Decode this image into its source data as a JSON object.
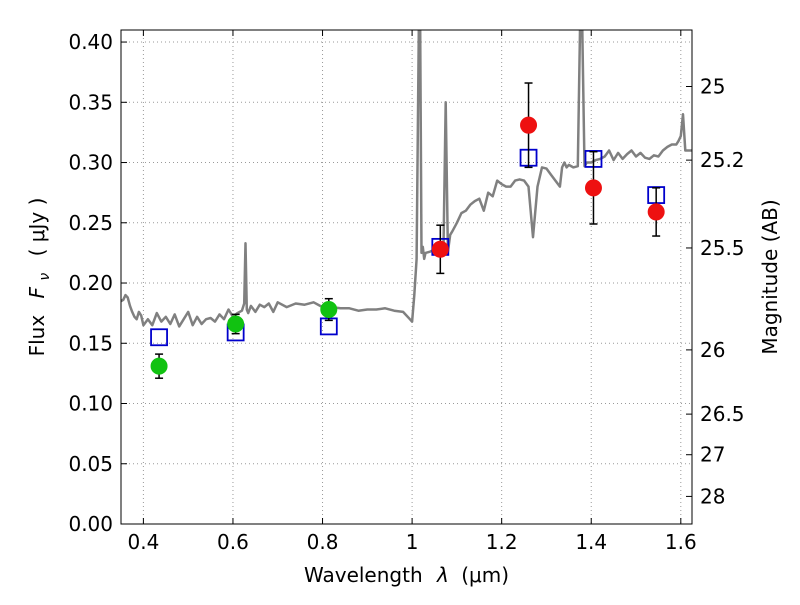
{
  "chart_data": {
    "type": "scatter",
    "title": "",
    "xlabel": {
      "prefix": "Wavelength",
      "symbol": "λ",
      "units": "(μm)"
    },
    "ylabel": {
      "prefix": "Flux",
      "symbol": "F",
      "subscript": "ν",
      "units": "( μJy )"
    },
    "y2label": "Magnitude (AB)",
    "xlim": [
      0.35,
      1.625
    ],
    "ylim": [
      0.0,
      0.41
    ],
    "grid": true,
    "x_ticks": [
      0.4,
      0.6,
      0.8,
      1.0,
      1.2,
      1.4,
      1.6
    ],
    "x_tick_labels": [
      "0.4",
      "0.6",
      "0.8",
      "1",
      "1.2",
      "1.4",
      "1.6"
    ],
    "y_ticks": [
      0.0,
      0.05,
      0.1,
      0.15,
      0.2,
      0.25,
      0.3,
      0.35,
      0.4
    ],
    "y_tick_labels": [
      "0.00",
      "0.05",
      "0.10",
      "0.15",
      "0.20",
      "0.25",
      "0.30",
      "0.35",
      "0.40"
    ],
    "y2_ticks": [
      {
        "label": "25",
        "flux": 0.3631
      },
      {
        "label": "25.2",
        "flux": 0.302
      },
      {
        "label": "25.5",
        "flux": 0.2291
      },
      {
        "label": "26",
        "flux": 0.1445
      },
      {
        "label": "26.5",
        "flux": 0.0912
      },
      {
        "label": "27",
        "flux": 0.0575
      },
      {
        "label": "28",
        "flux": 0.0229
      }
    ],
    "colors": {
      "model": "#808080",
      "optical": "#11c211",
      "nir": "#ee1111",
      "square": "#0000cc",
      "errorbar": "#000000",
      "grid": "#9a9a9a"
    },
    "model_spectrum": {
      "x": [
        0.35,
        0.355,
        0.36,
        0.365,
        0.37,
        0.375,
        0.38,
        0.385,
        0.39,
        0.395,
        0.4,
        0.41,
        0.42,
        0.43,
        0.44,
        0.45,
        0.46,
        0.47,
        0.48,
        0.49,
        0.5,
        0.51,
        0.52,
        0.53,
        0.54,
        0.55,
        0.56,
        0.57,
        0.58,
        0.59,
        0.6,
        0.61,
        0.62,
        0.625,
        0.628,
        0.631,
        0.634,
        0.64,
        0.65,
        0.66,
        0.67,
        0.68,
        0.69,
        0.7,
        0.72,
        0.74,
        0.76,
        0.78,
        0.8,
        0.82,
        0.84,
        0.86,
        0.88,
        0.9,
        0.92,
        0.94,
        0.96,
        0.98,
        0.995,
        1.0,
        1.005,
        1.01,
        1.015,
        1.018,
        1.021,
        1.024,
        1.027,
        1.03,
        1.04,
        1.05,
        1.06,
        1.07,
        1.075,
        1.08,
        1.085,
        1.09,
        1.1,
        1.11,
        1.12,
        1.13,
        1.14,
        1.15,
        1.16,
        1.17,
        1.18,
        1.19,
        1.2,
        1.21,
        1.22,
        1.23,
        1.24,
        1.25,
        1.26,
        1.27,
        1.28,
        1.29,
        1.3,
        1.31,
        1.32,
        1.33,
        1.335,
        1.34,
        1.345,
        1.35,
        1.36,
        1.37,
        1.375,
        1.38,
        1.385,
        1.39,
        1.4,
        1.41,
        1.42,
        1.43,
        1.44,
        1.45,
        1.46,
        1.47,
        1.48,
        1.49,
        1.5,
        1.51,
        1.52,
        1.53,
        1.54,
        1.55,
        1.56,
        1.57,
        1.58,
        1.59,
        1.595,
        1.6,
        1.605,
        1.61,
        1.615,
        1.625
      ],
      "y": [
        0.185,
        0.186,
        0.19,
        0.188,
        0.181,
        0.176,
        0.172,
        0.17,
        0.176,
        0.173,
        0.165,
        0.17,
        0.165,
        0.175,
        0.168,
        0.172,
        0.166,
        0.174,
        0.164,
        0.17,
        0.176,
        0.165,
        0.172,
        0.166,
        0.17,
        0.171,
        0.168,
        0.174,
        0.17,
        0.178,
        0.172,
        0.175,
        0.177,
        0.183,
        0.233,
        0.178,
        0.175,
        0.181,
        0.176,
        0.182,
        0.18,
        0.183,
        0.176,
        0.184,
        0.18,
        0.183,
        0.182,
        0.184,
        0.18,
        0.18,
        0.179,
        0.179,
        0.177,
        0.178,
        0.178,
        0.179,
        0.177,
        0.176,
        0.17,
        0.168,
        0.19,
        0.22,
        0.41,
        0.41,
        0.225,
        0.23,
        0.22,
        0.225,
        0.226,
        0.228,
        0.227,
        0.224,
        0.35,
        0.226,
        0.24,
        0.243,
        0.25,
        0.258,
        0.26,
        0.265,
        0.268,
        0.27,
        0.26,
        0.275,
        0.272,
        0.285,
        0.282,
        0.28,
        0.28,
        0.285,
        0.286,
        0.285,
        0.28,
        0.238,
        0.28,
        0.296,
        0.295,
        0.29,
        0.285,
        0.28,
        0.296,
        0.3,
        0.296,
        0.298,
        0.296,
        0.297,
        0.41,
        0.41,
        0.297,
        0.3,
        0.3,
        0.302,
        0.303,
        0.305,
        0.31,
        0.302,
        0.308,
        0.303,
        0.307,
        0.31,
        0.305,
        0.308,
        0.304,
        0.303,
        0.306,
        0.305,
        0.31,
        0.313,
        0.315,
        0.315,
        0.318,
        0.322,
        0.34,
        0.31,
        0.31,
        0.31
      ]
    },
    "observed_optical": [
      {
        "x": 0.435,
        "y": 0.131,
        "err": 0.01
      },
      {
        "x": 0.606,
        "y": 0.166,
        "err": 0.008
      },
      {
        "x": 0.814,
        "y": 0.178,
        "err": 0.009
      }
    ],
    "observed_nir": [
      {
        "x": 1.063,
        "y": 0.228,
        "err": 0.02
      },
      {
        "x": 1.26,
        "y": 0.331,
        "err": 0.035
      },
      {
        "x": 1.405,
        "y": 0.279,
        "err": 0.03
      },
      {
        "x": 1.545,
        "y": 0.259,
        "err": 0.02
      }
    ],
    "model_bandpass": [
      {
        "x": 0.435,
        "y": 0.155
      },
      {
        "x": 0.606,
        "y": 0.159
      },
      {
        "x": 0.814,
        "y": 0.164
      },
      {
        "x": 1.063,
        "y": 0.23
      },
      {
        "x": 1.26,
        "y": 0.304
      },
      {
        "x": 1.405,
        "y": 0.303
      },
      {
        "x": 1.545,
        "y": 0.273
      }
    ]
  }
}
